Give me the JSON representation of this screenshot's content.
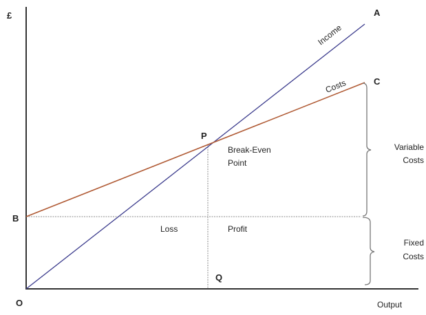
{
  "axes": {
    "y_label": "£",
    "x_label": "Output",
    "origin_label": "O"
  },
  "points": {
    "A": "A",
    "B": "B",
    "C": "C",
    "P": "P",
    "Q": "Q"
  },
  "lines": {
    "income": {
      "label": "Income",
      "color": "#3a3a8c"
    },
    "costs": {
      "label": "Costs",
      "color": "#b05a34"
    }
  },
  "annotations": {
    "break_even_line1": "Break-Even",
    "break_even_line2": "Point",
    "loss": "Loss",
    "profit": "Profit",
    "variable_costs_line1": "Variable",
    "variable_costs_line2": "Costs",
    "fixed_costs_line1": "Fixed",
    "fixed_costs_line2": "Costs"
  }
}
